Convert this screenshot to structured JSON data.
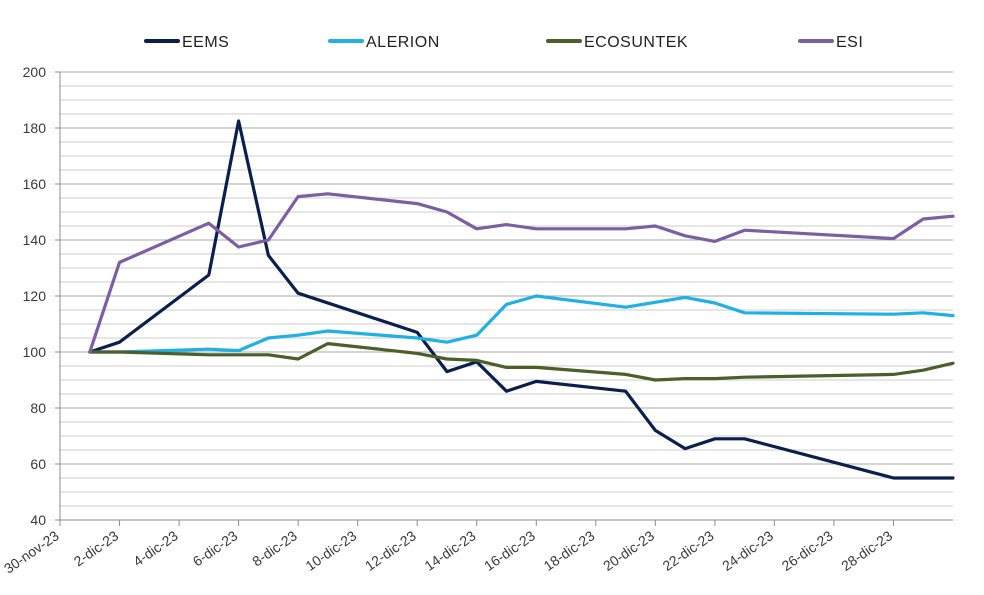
{
  "chart_data": {
    "type": "line",
    "title": "",
    "xlabel": "",
    "ylabel": "",
    "ylim": [
      40,
      200
    ],
    "y_ticks": [
      40,
      60,
      80,
      100,
      120,
      140,
      160,
      180,
      200
    ],
    "minor_grid_step": 5,
    "grid": true,
    "legend_position": "top",
    "x_tick_labels": [
      "30-nov-23",
      "2-dic-23",
      "4-dic-23",
      "6-dic-23",
      "8-dic-23",
      "10-dic-23",
      "12-dic-23",
      "14-dic-23",
      "16-dic-23",
      "18-dic-23",
      "20-dic-23",
      "22-dic-23",
      "24-dic-23",
      "26-dic-23",
      "28-dic-23"
    ],
    "x_tick_dates": [
      "2023-11-30",
      "2023-12-02",
      "2023-12-04",
      "2023-12-06",
      "2023-12-08",
      "2023-12-10",
      "2023-12-12",
      "2023-12-14",
      "2023-12-16",
      "2023-12-18",
      "2023-12-20",
      "2023-12-22",
      "2023-12-24",
      "2023-12-26",
      "2023-12-28"
    ],
    "x_range": [
      "2023-11-30",
      "2023-12-30"
    ],
    "series": [
      {
        "name": "EEMS",
        "color": "#0b1f4f",
        "points": [
          [
            "2023-12-01",
            100
          ],
          [
            "2023-12-02",
            103.5
          ],
          [
            "2023-12-05",
            127.5
          ],
          [
            "2023-12-06",
            182.5
          ],
          [
            "2023-12-07",
            134.5
          ],
          [
            "2023-12-08",
            121
          ],
          [
            "2023-12-12",
            107
          ],
          [
            "2023-12-13",
            93
          ],
          [
            "2023-12-14",
            96.5
          ],
          [
            "2023-12-15",
            86
          ],
          [
            "2023-12-16",
            89.5
          ],
          [
            "2023-12-19",
            86
          ],
          [
            "2023-12-20",
            72
          ],
          [
            "2023-12-21",
            65.5
          ],
          [
            "2023-12-22",
            69
          ],
          [
            "2023-12-23",
            69
          ],
          [
            "2023-12-28",
            55
          ],
          [
            "2023-12-29",
            55
          ],
          [
            "2023-12-30",
            55
          ]
        ]
      },
      {
        "name": "ALERION",
        "color": "#1fb0e6",
        "points": [
          [
            "2023-12-01",
            100
          ],
          [
            "2023-12-02",
            100
          ],
          [
            "2023-12-05",
            101
          ],
          [
            "2023-12-06",
            100.5
          ],
          [
            "2023-12-07",
            105
          ],
          [
            "2023-12-08",
            106
          ],
          [
            "2023-12-09",
            107.5
          ],
          [
            "2023-12-12",
            105
          ],
          [
            "2023-12-13",
            103.5
          ],
          [
            "2023-12-14",
            106
          ],
          [
            "2023-12-15",
            117
          ],
          [
            "2023-12-16",
            120
          ],
          [
            "2023-12-19",
            116
          ],
          [
            "2023-12-21",
            119.5
          ],
          [
            "2023-12-22",
            117.5
          ],
          [
            "2023-12-23",
            114
          ],
          [
            "2023-12-28",
            113.5
          ],
          [
            "2023-12-29",
            114
          ],
          [
            "2023-12-30",
            113
          ]
        ]
      },
      {
        "name": "ECOSUNTEK",
        "color": "#4b5f2a",
        "points": [
          [
            "2023-12-01",
            100
          ],
          [
            "2023-12-02",
            100
          ],
          [
            "2023-12-05",
            99
          ],
          [
            "2023-12-06",
            99
          ],
          [
            "2023-12-07",
            99
          ],
          [
            "2023-12-08",
            97.5
          ],
          [
            "2023-12-09",
            103
          ],
          [
            "2023-12-12",
            99.5
          ],
          [
            "2023-12-13",
            97.5
          ],
          [
            "2023-12-14",
            97
          ],
          [
            "2023-12-15",
            94.5
          ],
          [
            "2023-12-16",
            94.5
          ],
          [
            "2023-12-19",
            92
          ],
          [
            "2023-12-20",
            90
          ],
          [
            "2023-12-21",
            90.5
          ],
          [
            "2023-12-22",
            90.5
          ],
          [
            "2023-12-23",
            91
          ],
          [
            "2023-12-28",
            92
          ],
          [
            "2023-12-29",
            93.5
          ],
          [
            "2023-12-30",
            96
          ]
        ]
      },
      {
        "name": "ESI",
        "color": "#7d5ea3",
        "points": [
          [
            "2023-12-01",
            100
          ],
          [
            "2023-12-02",
            132
          ],
          [
            "2023-12-05",
            146
          ],
          [
            "2023-12-06",
            137.5
          ],
          [
            "2023-12-07",
            140
          ],
          [
            "2023-12-08",
            155.5
          ],
          [
            "2023-12-09",
            156.5
          ],
          [
            "2023-12-12",
            153
          ],
          [
            "2023-12-13",
            150
          ],
          [
            "2023-12-14",
            144
          ],
          [
            "2023-12-15",
            145.5
          ],
          [
            "2023-12-16",
            144
          ],
          [
            "2023-12-19",
            144
          ],
          [
            "2023-12-20",
            145
          ],
          [
            "2023-12-21",
            141.5
          ],
          [
            "2023-12-22",
            139.5
          ],
          [
            "2023-12-23",
            143.5
          ],
          [
            "2023-12-28",
            140.5
          ],
          [
            "2023-12-29",
            147.5
          ],
          [
            "2023-12-30",
            148.5
          ]
        ]
      }
    ]
  }
}
